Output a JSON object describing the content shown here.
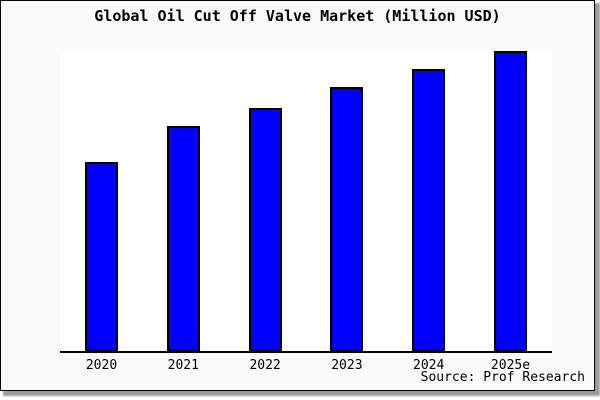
{
  "title": "Global Oil Cut Off Valve Market (Million USD)",
  "source": "Source: Prof Research",
  "colors": {
    "bar_fill": "#0000ff",
    "bar_border": "#000000",
    "frame_background": "#fafafa",
    "plot_background": "#ffffff",
    "axis": "#000000"
  },
  "chart_data": {
    "type": "bar",
    "title": "Global Oil Cut Off Valve Market (Million USD)",
    "categories": [
      "2020",
      "2021",
      "2022",
      "2023",
      "2024",
      "2025e"
    ],
    "values": [
      63,
      75,
      81,
      88,
      94,
      100
    ],
    "value_note": "no y-axis or data labels shown; values are relative bar heights with tallest bar (2025e) = 100",
    "xlabel": "",
    "ylabel": "",
    "ylim": [
      0,
      100
    ],
    "grid": false,
    "y_axis_shown": false,
    "legend": null,
    "annotation": "Source: Prof Research"
  }
}
